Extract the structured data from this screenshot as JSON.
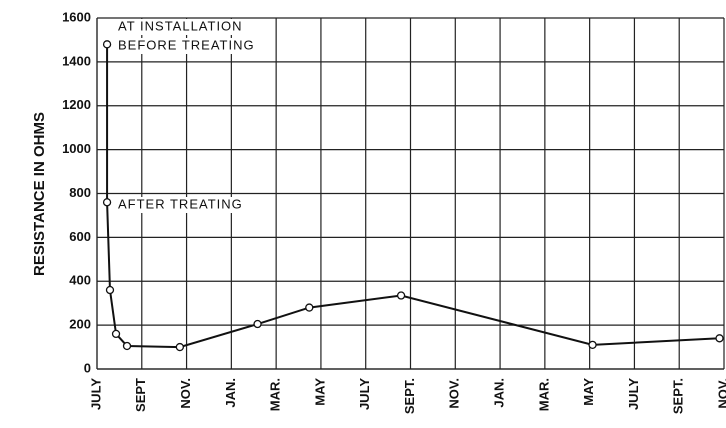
{
  "chart_data": {
    "type": "line",
    "y_label": "RESISTANCE IN OHMS",
    "annotations": [
      "AT INSTALLATION",
      "BEFORE TREATING",
      "AFTER TREATING"
    ],
    "xlim": [
      0,
      28
    ],
    "xticks": [
      {
        "value": 0,
        "label": "JULY"
      },
      {
        "value": 2,
        "label": "SEPT"
      },
      {
        "value": 4,
        "label": "NOV."
      },
      {
        "value": 6,
        "label": "JAN."
      },
      {
        "value": 8,
        "label": "MAR."
      },
      {
        "value": 10,
        "label": "MAY"
      },
      {
        "value": 12,
        "label": "JULY"
      },
      {
        "value": 14,
        "label": "SEPT."
      },
      {
        "value": 16,
        "label": "NOV."
      },
      {
        "value": 18,
        "label": "JAN."
      },
      {
        "value": 20,
        "label": "MAR."
      },
      {
        "value": 22,
        "label": "MAY"
      },
      {
        "value": 24,
        "label": "JULY"
      },
      {
        "value": 26,
        "label": "SEPT."
      },
      {
        "value": 28,
        "label": "NOV."
      }
    ],
    "ylim": [
      0,
      1600
    ],
    "yticks": [
      0,
      200,
      400,
      600,
      800,
      1000,
      1200,
      1400,
      1600
    ],
    "grid": true,
    "color": "#111111",
    "x": [
      0.45,
      0.45,
      0.58,
      0.85,
      1.34,
      3.7,
      7.17,
      9.48,
      13.58,
      22.13,
      27.8
    ],
    "values": [
      1480,
      760,
      360,
      160,
      105,
      100,
      205,
      280,
      335,
      110,
      140
    ]
  }
}
